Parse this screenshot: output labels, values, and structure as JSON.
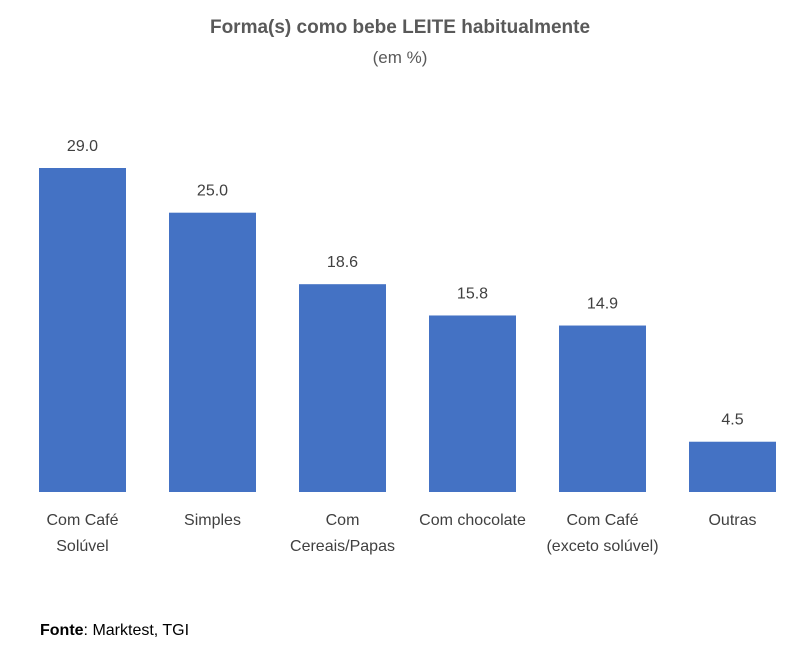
{
  "chart_data": {
    "type": "bar",
    "title": "Forma(s) como bebe LEITE habitualmente",
    "subtitle": "(em %)",
    "categories": [
      [
        "Com Café",
        "Solúvel"
      ],
      [
        "Simples"
      ],
      [
        "Com",
        "Cereais/Papas"
      ],
      [
        "Com chocolate"
      ],
      [
        "Com Café",
        "(exceto solúvel)"
      ],
      [
        "Outras"
      ]
    ],
    "values": [
      29.0,
      25.0,
      18.6,
      15.8,
      14.9,
      4.5
    ],
    "value_labels": [
      "29.0",
      "25.0",
      "18.6",
      "15.8",
      "14.9",
      "4.5"
    ],
    "bar_color": "#4472C4",
    "ylim": [
      0,
      29.0
    ],
    "grid": false,
    "legend": "none"
  },
  "source": {
    "label": "Fonte",
    "text": ": Marktest, TGI"
  }
}
